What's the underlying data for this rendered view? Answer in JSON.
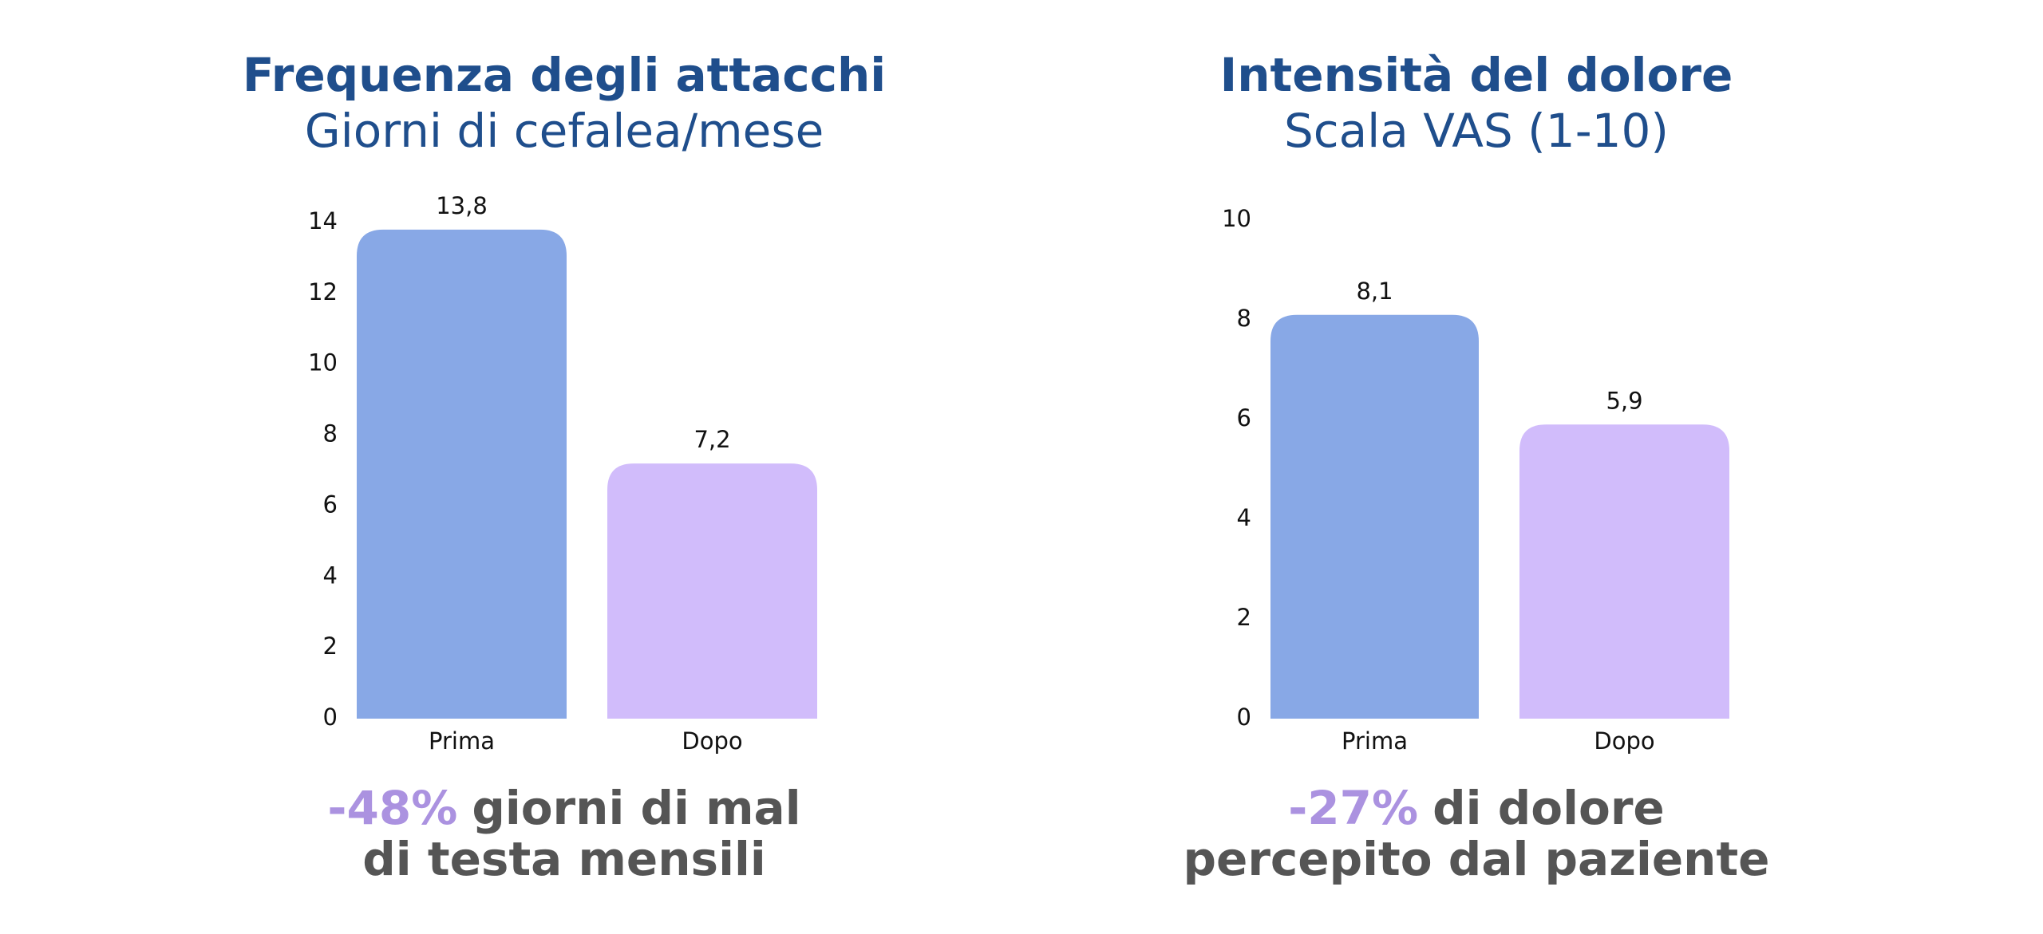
{
  "chart_data": [
    {
      "type": "bar",
      "title": "Frequenza degli attacchi",
      "subtitle": "Giorni di cefalea/mese",
      "categories": [
        "Prima",
        "Dopo"
      ],
      "values": [
        13.8,
        7.2
      ],
      "value_labels": [
        "13,8",
        "7,2"
      ],
      "colors": [
        "#88a8e6",
        "#d1bcfb"
      ],
      "ylim": [
        0,
        14
      ],
      "yticks": [
        0,
        2,
        4,
        6,
        8,
        10,
        12,
        14
      ],
      "annotation": {
        "highlight": "-48%",
        "text": "giorni di mal di testa mensili"
      }
    },
    {
      "type": "bar",
      "title": "Intensità del dolore",
      "subtitle": "Scala VAS (1-10)",
      "categories": [
        "Prima",
        "Dopo"
      ],
      "values": [
        8.1,
        5.9
      ],
      "value_labels": [
        "8,1",
        "5,9"
      ],
      "colors": [
        "#88a8e6",
        "#d1bcfb"
      ],
      "ylim": [
        0,
        10
      ],
      "yticks": [
        0,
        2,
        4,
        6,
        8,
        10
      ],
      "annotation": {
        "highlight": "-27%",
        "text": "di dolore percepito dal paziente"
      }
    }
  ]
}
